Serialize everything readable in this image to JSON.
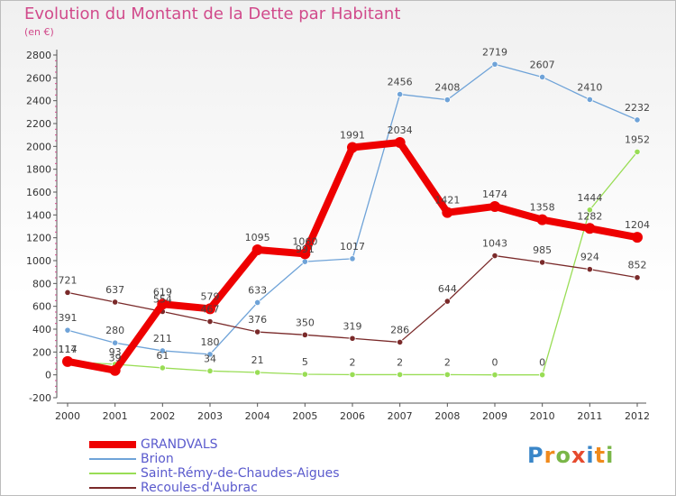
{
  "chart_data": {
    "type": "line",
    "title": "Evolution du Montant de la Dette par Habitant",
    "subtitle": "(en €)",
    "categories": [
      "2000",
      "2001",
      "2002",
      "2003",
      "2004",
      "2005",
      "2006",
      "2007",
      "2008",
      "2009",
      "2010",
      "2011",
      "2012"
    ],
    "ylim": [
      -200,
      2800
    ],
    "yticks": [
      -200,
      0,
      200,
      400,
      600,
      800,
      1000,
      1200,
      1400,
      1600,
      1800,
      2000,
      2200,
      2400,
      2600,
      2800
    ],
    "grid": false,
    "legend_position": "bottom-left",
    "series": [
      {
        "name": "GRANDVALS",
        "color": "#ee0000",
        "values": [
          117,
          39,
          619,
          579,
          1095,
          1060,
          1991,
          2034,
          1421,
          1474,
          1358,
          1282,
          1204
        ]
      },
      {
        "name": "Brion",
        "color": "#6fa3d8",
        "values": [
          391,
          280,
          211,
          180,
          633,
          991,
          1017,
          2456,
          2408,
          2719,
          2607,
          2410,
          2232
        ]
      },
      {
        "name": "Saint-Rémy-de-Chaudes-Aigues",
        "color": "#99dd55",
        "values": [
          114,
          93,
          61,
          34,
          21,
          5,
          2,
          2,
          2,
          0,
          0,
          1444,
          1952
        ]
      },
      {
        "name": "Recoules-d'Aubrac",
        "color": "#7a2a2a",
        "values": [
          721,
          637,
          554,
          467,
          376,
          350,
          319,
          286,
          644,
          1043,
          985,
          924,
          852
        ]
      }
    ]
  },
  "logo": {
    "letters": [
      "P",
      "r",
      "o",
      "x",
      "i",
      "t",
      "i"
    ],
    "colors": [
      "#3a86c8",
      "#f08a1c",
      "#7ab648",
      "#e64a2e",
      "#3a86c8",
      "#f08a1c",
      "#7ab648"
    ]
  }
}
